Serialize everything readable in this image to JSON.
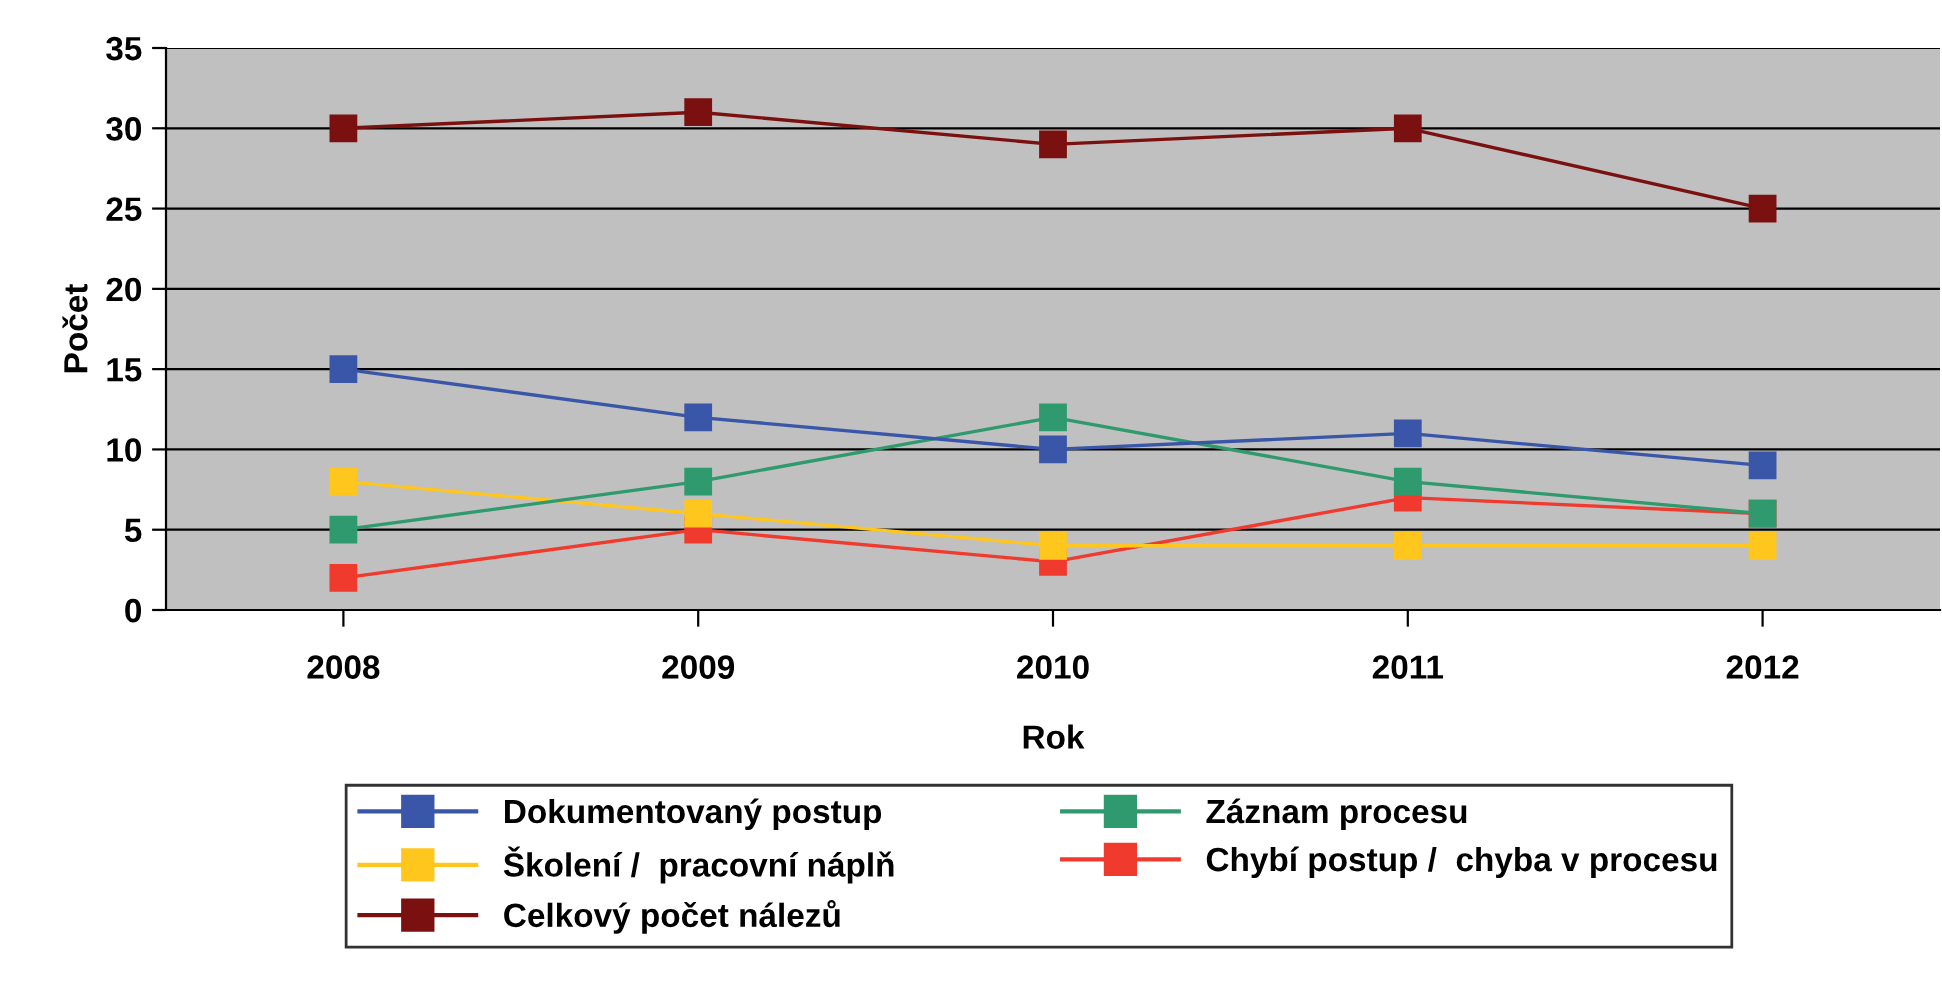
{
  "chart_data": {
    "type": "line",
    "xlabel": "Rok",
    "ylabel": "Počet",
    "categories": [
      "2008",
      "2009",
      "2010",
      "2011",
      "2012"
    ],
    "series": [
      {
        "name": "Dokumentovaný postup",
        "color": "#3a56a8",
        "values": [
          15,
          12,
          10,
          11,
          9
        ]
      },
      {
        "name": "Záznam procesu",
        "color": "#2e9a6e",
        "values": [
          5,
          8,
          12,
          8,
          6
        ]
      },
      {
        "name": "Školení /  pracovní náplň",
        "color": "#ffc61e",
        "values": [
          8,
          6,
          4,
          4,
          4
        ]
      },
      {
        "name": "Chybí postup /  chyba v procesu",
        "color": "#f03a2e",
        "values": [
          2,
          5,
          3,
          7,
          6
        ]
      },
      {
        "name": "Celkový počet nálezů",
        "color": "#7b1010",
        "values": [
          30,
          31,
          29,
          30,
          25
        ]
      }
    ],
    "ylim": [
      0,
      35
    ],
    "yticks": [
      0,
      5,
      10,
      15,
      20,
      25,
      30,
      35
    ],
    "grid": "y",
    "legend": "bottom",
    "marker": "square",
    "line_style": "solid"
  }
}
